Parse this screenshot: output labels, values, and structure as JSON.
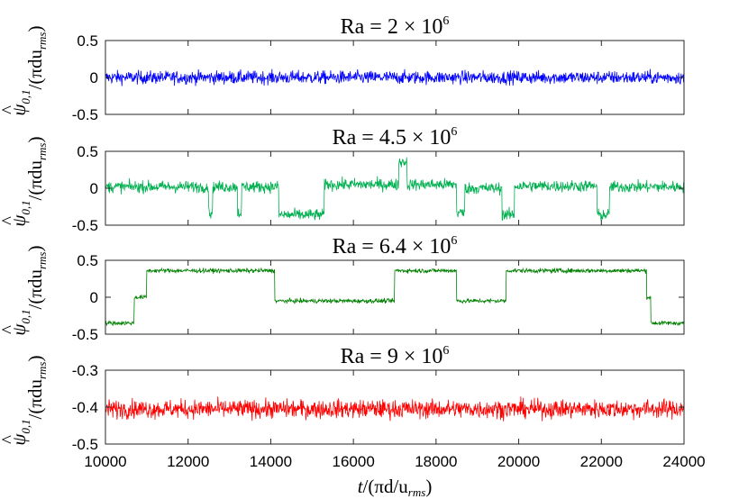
{
  "figure": {
    "xlabel_t": "t",
    "xlabel_rest": "/(πd/u",
    "xlabel_sub": "rms",
    "xlabel_close": ")",
    "ylabel_psi": "ψ",
    "ylabel_hat": "^",
    "ylabel_sub": "0,1",
    "ylabel_norm": "/(πdu",
    "ylabel_norm_sub": "rms",
    "ylabel_close": ")"
  },
  "chart_data": [
    {
      "type": "line",
      "title_main": "Ra = 2 × 10",
      "title_exp": "6",
      "color": "#0000ff",
      "xlim": [
        10000,
        24000
      ],
      "ylim": [
        -0.5,
        0.5
      ],
      "yticks": [
        -0.5,
        0,
        0.5
      ],
      "ytick_labels": [
        "-0.5",
        "0",
        "0.5"
      ],
      "baseline": 0.0,
      "noise": 0.09,
      "segments": [
        [
          10000,
          24000,
          0.0
        ]
      ]
    },
    {
      "type": "line",
      "title_main": "Ra = 4.5 × 10",
      "title_exp": "6",
      "color": "#00b050",
      "xlim": [
        10000,
        24000
      ],
      "ylim": [
        -0.5,
        0.5
      ],
      "yticks": [
        -0.5,
        0,
        0.5
      ],
      "ytick_labels": [
        "-0.5",
        "0",
        "0.5"
      ],
      "noise": 0.08,
      "segments": [
        [
          10000,
          12500,
          0.02
        ],
        [
          12500,
          12600,
          -0.33
        ],
        [
          12600,
          13200,
          0.02
        ],
        [
          13200,
          13300,
          -0.33
        ],
        [
          13300,
          14200,
          0.02
        ],
        [
          14200,
          15300,
          -0.36
        ],
        [
          15300,
          17100,
          0.05
        ],
        [
          17100,
          17300,
          0.36
        ],
        [
          17300,
          18500,
          0.05
        ],
        [
          18500,
          18700,
          -0.33
        ],
        [
          18700,
          19600,
          0.0
        ],
        [
          19600,
          19900,
          -0.36
        ],
        [
          19900,
          21900,
          0.03
        ],
        [
          21900,
          22200,
          -0.36
        ],
        [
          22200,
          24000,
          0.02
        ]
      ]
    },
    {
      "type": "line",
      "title_main": "Ra = 6.4 × 10",
      "title_exp": "6",
      "color": "#008000",
      "xlim": [
        10000,
        24000
      ],
      "ylim": [
        -0.5,
        0.5
      ],
      "yticks": [
        -0.5,
        0,
        0.5
      ],
      "ytick_labels": [
        "-0.5",
        "0",
        "0.5"
      ],
      "noise": 0.03,
      "segments": [
        [
          10000,
          10700,
          -0.35
        ],
        [
          10700,
          11000,
          0.0
        ],
        [
          11000,
          14100,
          0.36
        ],
        [
          14100,
          17000,
          -0.05
        ],
        [
          17000,
          18500,
          0.36
        ],
        [
          18500,
          19700,
          -0.05
        ],
        [
          19700,
          23100,
          0.36
        ],
        [
          23100,
          23200,
          0.0
        ],
        [
          23200,
          24000,
          -0.35
        ]
      ]
    },
    {
      "type": "line",
      "title_main": "Ra = 9 × 10",
      "title_exp": "6",
      "color": "#ff0000",
      "xlim": [
        10000,
        24000
      ],
      "ylim": [
        -0.5,
        -0.3
      ],
      "yticks": [
        -0.5,
        -0.4,
        -0.3
      ],
      "ytick_labels": [
        "-0.5",
        "-0.4",
        "-0.3"
      ],
      "noise": 0.025,
      "segments": [
        [
          10000,
          24000,
          -0.405
        ]
      ]
    }
  ],
  "xticks": [
    10000,
    12000,
    14000,
    16000,
    18000,
    20000,
    22000,
    24000
  ],
  "xtick_labels": [
    "10000",
    "12000",
    "14000",
    "16000",
    "18000",
    "20000",
    "22000",
    "24000"
  ]
}
